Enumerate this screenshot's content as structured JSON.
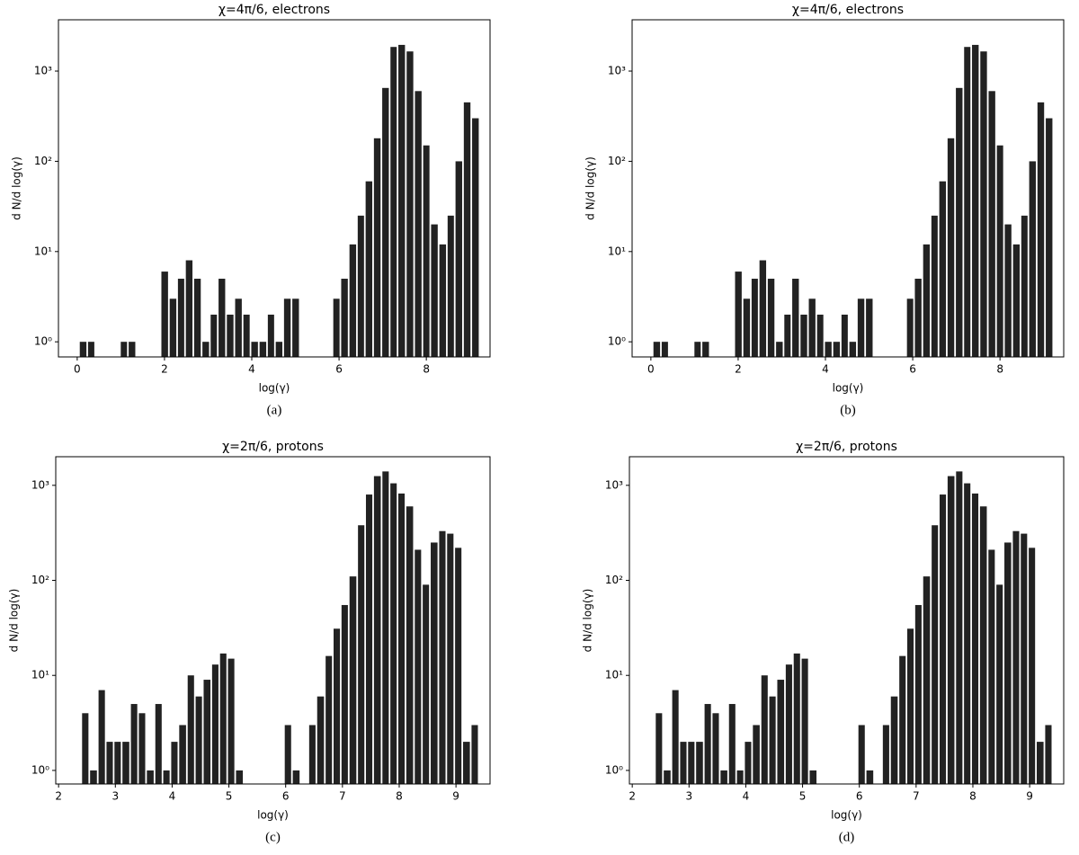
{
  "chart_data": [
    {
      "type": "histogram",
      "title": "χ=4π/6, electrons",
      "xlabel": "log(γ)",
      "ylabel": "d N/d log(γ)",
      "caption": "(a)",
      "color": "#222222",
      "log_y": true,
      "bins": [
        0.04,
        0.23,
        0.41,
        0.6,
        0.79,
        0.98,
        1.16,
        1.35,
        1.54,
        1.73,
        1.91,
        2.1,
        2.29,
        2.47,
        2.66,
        2.85,
        3.04,
        3.22,
        3.41,
        3.6,
        3.79,
        3.97,
        4.16,
        4.35,
        4.53,
        4.72,
        4.91,
        5.1,
        5.28,
        5.47,
        5.66,
        5.85,
        6.03,
        6.22,
        6.41,
        6.59,
        6.78,
        6.97,
        7.16,
        7.34,
        7.53,
        7.72,
        7.91,
        8.09,
        8.28,
        8.47,
        8.65,
        8.84,
        9.03,
        9.22
      ],
      "values": [
        1,
        1,
        0,
        0,
        0,
        1,
        1,
        0,
        0,
        0,
        6,
        3,
        5,
        8,
        5,
        1,
        2,
        5,
        2,
        3,
        2,
        1,
        1,
        2,
        1,
        3,
        3,
        0,
        0,
        0,
        0,
        3,
        5,
        12,
        25,
        60,
        180,
        650,
        1850,
        1950,
        1650,
        600,
        150,
        20,
        12,
        25,
        100,
        450,
        300
      ],
      "xlim": [
        -0.43,
        9.46
      ],
      "xticks": [
        0,
        2,
        4,
        6,
        8
      ],
      "ylim": [
        0.68,
        3700
      ],
      "yticks": [
        {
          "value": 1,
          "label": "10⁰"
        },
        {
          "value": 10,
          "label": "10¹"
        },
        {
          "value": 100,
          "label": "10²"
        },
        {
          "value": 1000,
          "label": "10³"
        }
      ]
    },
    {
      "type": "histogram",
      "title": "χ=4π/6, electrons",
      "xlabel": "log(γ)",
      "ylabel": "d N/d log(γ)",
      "caption": "(b)",
      "color": "#222222",
      "log_y": true,
      "bins": [
        0.04,
        0.23,
        0.41,
        0.6,
        0.79,
        0.98,
        1.16,
        1.35,
        1.54,
        1.73,
        1.91,
        2.1,
        2.29,
        2.47,
        2.66,
        2.85,
        3.04,
        3.22,
        3.41,
        3.6,
        3.79,
        3.97,
        4.16,
        4.35,
        4.53,
        4.72,
        4.91,
        5.1,
        5.28,
        5.47,
        5.66,
        5.85,
        6.03,
        6.22,
        6.41,
        6.59,
        6.78,
        6.97,
        7.16,
        7.34,
        7.53,
        7.72,
        7.91,
        8.09,
        8.28,
        8.47,
        8.65,
        8.84,
        9.03,
        9.22
      ],
      "values": [
        1,
        1,
        0,
        0,
        0,
        1,
        1,
        0,
        0,
        0,
        6,
        3,
        5,
        8,
        5,
        1,
        2,
        5,
        2,
        3,
        2,
        1,
        1,
        2,
        1,
        3,
        3,
        0,
        0,
        0,
        0,
        3,
        5,
        12,
        25,
        60,
        180,
        650,
        1850,
        1950,
        1650,
        600,
        150,
        20,
        12,
        25,
        100,
        450,
        300
      ],
      "xlim": [
        -0.43,
        9.46
      ],
      "xticks": [
        0,
        2,
        4,
        6,
        8
      ],
      "ylim": [
        0.68,
        3700
      ],
      "yticks": [
        {
          "value": 1,
          "label": "10⁰"
        },
        {
          "value": 10,
          "label": "10¹"
        },
        {
          "value": 100,
          "label": "10²"
        },
        {
          "value": 1000,
          "label": "10³"
        }
      ]
    },
    {
      "type": "histogram",
      "title": "χ=2π/6, protons",
      "xlabel": "log(γ)",
      "ylabel": "d N/d log(γ)",
      "caption": "(c)",
      "color": "#222222",
      "log_y": true,
      "bins": [
        2.4,
        2.54,
        2.69,
        2.83,
        2.97,
        3.11,
        3.26,
        3.4,
        3.54,
        3.69,
        3.83,
        3.97,
        4.11,
        4.26,
        4.4,
        4.54,
        4.69,
        4.83,
        4.97,
        5.11,
        5.26,
        5.4,
        5.54,
        5.69,
        5.83,
        5.97,
        6.11,
        6.26,
        6.4,
        6.54,
        6.69,
        6.83,
        6.97,
        7.11,
        7.26,
        7.4,
        7.54,
        7.69,
        7.83,
        7.97,
        8.11,
        8.26,
        8.4,
        8.54,
        8.69,
        8.83,
        8.97,
        9.11,
        9.26,
        9.4
      ],
      "values": [
        4,
        1,
        7,
        2,
        2,
        2,
        5,
        4,
        1,
        5,
        1,
        2,
        3,
        10,
        6,
        9,
        13,
        17,
        15,
        1,
        0,
        0,
        0,
        0,
        0,
        3,
        1,
        0,
        3,
        6,
        16,
        31,
        55,
        110,
        380,
        800,
        1250,
        1400,
        1050,
        820,
        600,
        210,
        90,
        250,
        330,
        310,
        220,
        2,
        3
      ],
      "xlim": [
        1.95,
        9.6
      ],
      "xticks": [
        2,
        3,
        4,
        5,
        6,
        7,
        8,
        9
      ],
      "ylim": [
        0.72,
        2000
      ],
      "yticks": [
        {
          "value": 1,
          "label": "10⁰"
        },
        {
          "value": 10,
          "label": "10¹"
        },
        {
          "value": 100,
          "label": "10²"
        },
        {
          "value": 1000,
          "label": "10³"
        }
      ]
    },
    {
      "type": "histogram",
      "title": "χ=2π/6, protons",
      "xlabel": "log(γ)",
      "ylabel": "d N/d log(γ)",
      "caption": "(d)",
      "color": "#222222",
      "log_y": true,
      "bins": [
        2.4,
        2.54,
        2.69,
        2.83,
        2.97,
        3.11,
        3.26,
        3.4,
        3.54,
        3.69,
        3.83,
        3.97,
        4.11,
        4.26,
        4.4,
        4.54,
        4.69,
        4.83,
        4.97,
        5.11,
        5.26,
        5.4,
        5.54,
        5.69,
        5.83,
        5.97,
        6.11,
        6.26,
        6.4,
        6.54,
        6.69,
        6.83,
        6.97,
        7.11,
        7.26,
        7.4,
        7.54,
        7.69,
        7.83,
        7.97,
        8.11,
        8.26,
        8.4,
        8.54,
        8.69,
        8.83,
        8.97,
        9.11,
        9.26,
        9.4
      ],
      "values": [
        4,
        1,
        7,
        2,
        2,
        2,
        5,
        4,
        1,
        5,
        1,
        2,
        3,
        10,
        6,
        9,
        13,
        17,
        15,
        1,
        0,
        0,
        0,
        0,
        0,
        3,
        1,
        0,
        3,
        6,
        16,
        31,
        55,
        110,
        380,
        800,
        1250,
        1400,
        1050,
        820,
        600,
        210,
        90,
        250,
        330,
        310,
        220,
        2,
        3
      ],
      "xlim": [
        1.95,
        9.6
      ],
      "xticks": [
        2,
        3,
        4,
        5,
        6,
        7,
        8,
        9
      ],
      "ylim": [
        0.72,
        2000
      ],
      "yticks": [
        {
          "value": 1,
          "label": "10⁰"
        },
        {
          "value": 10,
          "label": "10¹"
        },
        {
          "value": 100,
          "label": "10²"
        },
        {
          "value": 1000,
          "label": "10³"
        }
      ]
    }
  ]
}
